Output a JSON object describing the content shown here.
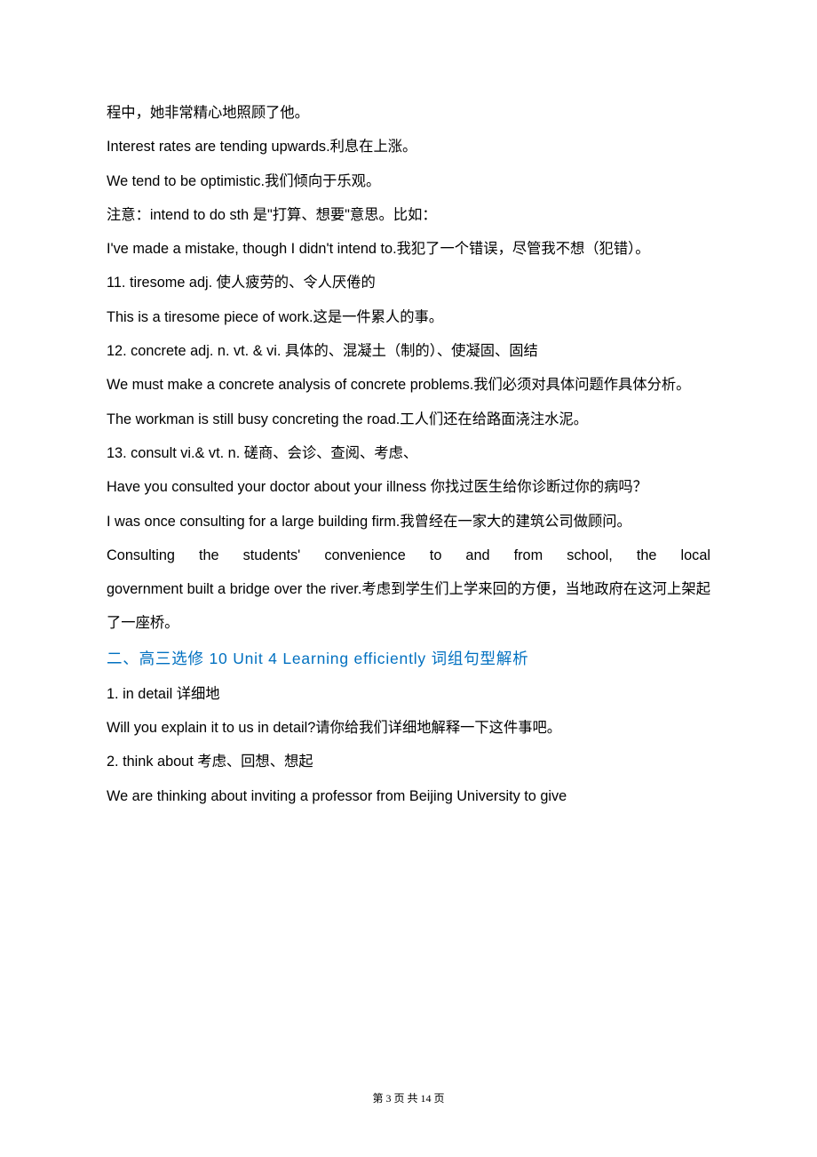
{
  "lines": {
    "l1": "程中，她非常精心地照顾了他。",
    "l2": "Interest rates are tending upwards.利息在上涨。",
    "l3": "We tend to be optimistic.我们倾向于乐观。",
    "l4": "注意：intend to do sth 是\"打算、想要\"意思。比如：",
    "l5": "I've made a mistake, though I didn't intend to.我犯了一个错误，尽管我不想（犯错）。",
    "l6": "11. tiresome  adj.  使人疲劳的、令人厌倦的",
    "l7": "This is a tiresome piece of work.这是一件累人的事。",
    "l8": "12. concrete  adj. n. vt. & vi.  具体的、混凝土（制的）、使凝固、固结",
    "l9": "We must make a concrete analysis of concrete problems.我们必须对具体问题作具体分析。",
    "l10": "The workman is still busy concreting the road.工人们还在给路面浇注水泥。",
    "l11": "13. consult  vi.& vt.  n.  磋商、会诊、查阅、考虑、",
    "l12": "Have you consulted your doctor about your illness 你找过医生给你诊断过你的病吗？",
    "l13": "I was once consulting for a large building firm.我曾经在一家大的建筑公司做顾问。",
    "l14a": "Consulting   the   students'   convenience   to   and   from   school,   the   local",
    "l14b": "government built a bridge over the river.考虑到学生们上学来回的方便，当地政府在这河上架起了一座桥。"
  },
  "heading": "二、高三选修 10 Unit 4 Learning efficiently 词组句型解析",
  "items": {
    "i1a": "1. in detail  详细地",
    "i1b": "Will you explain it to us in detail?请你给我们详细地解释一下这件事吧。",
    "i2a": "2. think about  考虑、回想、想起",
    "i2b": "We are thinking about inviting a professor from Beijing University to give"
  },
  "footer": "第 3 页 共 14 页",
  "colors": {
    "heading": "#0070c0",
    "text": "#000000",
    "background": "#ffffff"
  }
}
